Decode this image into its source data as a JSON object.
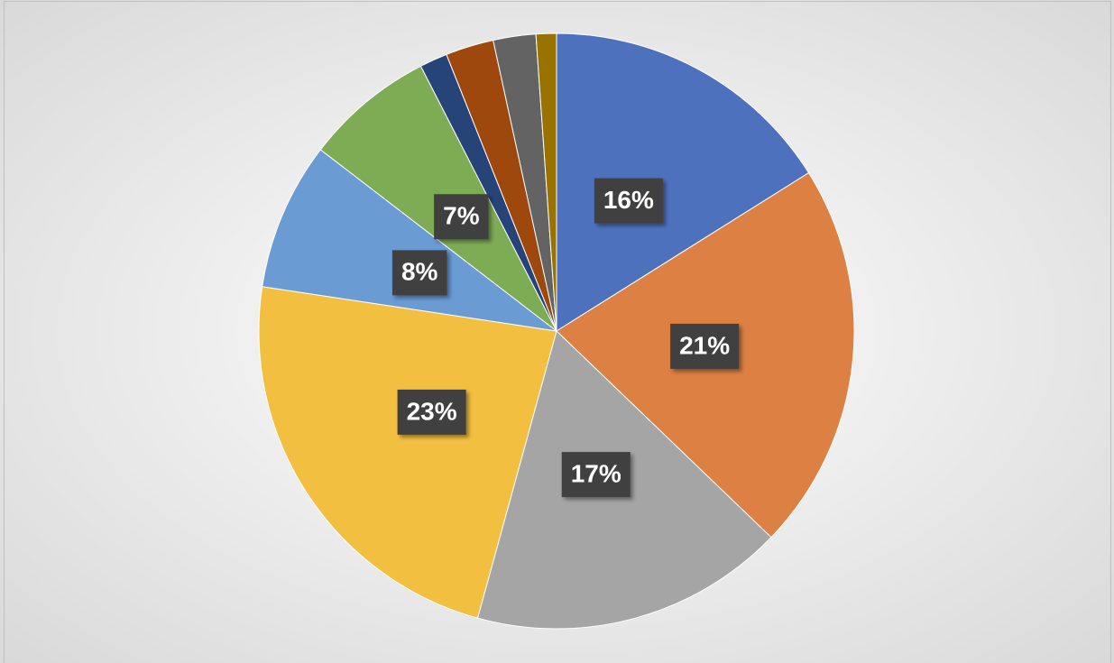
{
  "chart_data": {
    "type": "pie",
    "values": [
      16,
      21,
      17,
      23,
      8,
      7,
      1.5,
      2.6,
      2.3,
      1.1
    ],
    "value_labels": [
      "16%",
      "21%",
      "17%",
      "23%",
      "8%",
      "7%",
      null,
      null,
      null,
      null
    ],
    "colors": [
      "#4e71be",
      "#dd8043",
      "#a5a5a5",
      "#f2bf40",
      "#6a9bd3",
      "#7eac55",
      "#264478",
      "#9e480e",
      "#636363",
      "#997300"
    ]
  }
}
